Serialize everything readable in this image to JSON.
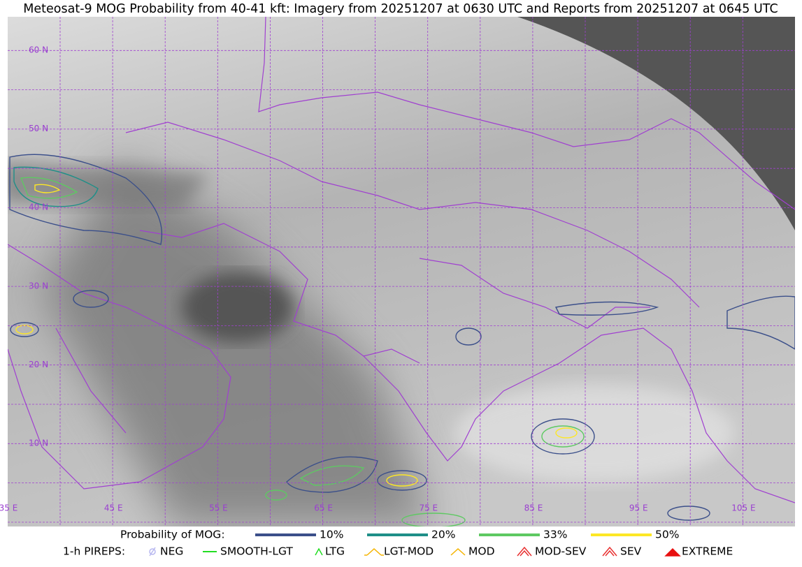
{
  "header": {
    "title": "Meteosat-9 MOG Probability from 40-41 kft: Imagery from 20251207 at 0630 UTC and Reports from 20251207 at 0645 UTC"
  },
  "map": {
    "lat_labels": [
      "60 N",
      "50 N",
      "40 N",
      "30 N",
      "20 N",
      "10 N"
    ],
    "lon_labels": [
      "35 E",
      "45 E",
      "55 E",
      "65 E",
      "75 E",
      "85 E",
      "95 E",
      "105 E"
    ]
  },
  "legend": {
    "probability": {
      "label": "Probability of MOG:",
      "items": [
        {
          "label": "10%",
          "color": "#3b4f8a"
        },
        {
          "label": "20%",
          "color": "#1f8f88"
        },
        {
          "label": "33%",
          "color": "#5ec962"
        },
        {
          "label": "50%",
          "color": "#fde725"
        }
      ]
    },
    "pireps": {
      "label": "1-h PIREPS:",
      "items": [
        {
          "label": "NEG",
          "color": "#b8b8f0"
        },
        {
          "label": "SMOOTH-LGT",
          "color": "#22dd22"
        },
        {
          "label": "LTG",
          "color": "#22dd22"
        },
        {
          "label": "LGT-MOD",
          "color": "#f5b400"
        },
        {
          "label": "MOD",
          "color": "#f5b400"
        },
        {
          "label": "MOD-SEV",
          "color": "#e83030"
        },
        {
          "label": "SEV",
          "color": "#e83030"
        },
        {
          "label": "EXTREME",
          "color": "#e81010"
        }
      ]
    }
  }
}
